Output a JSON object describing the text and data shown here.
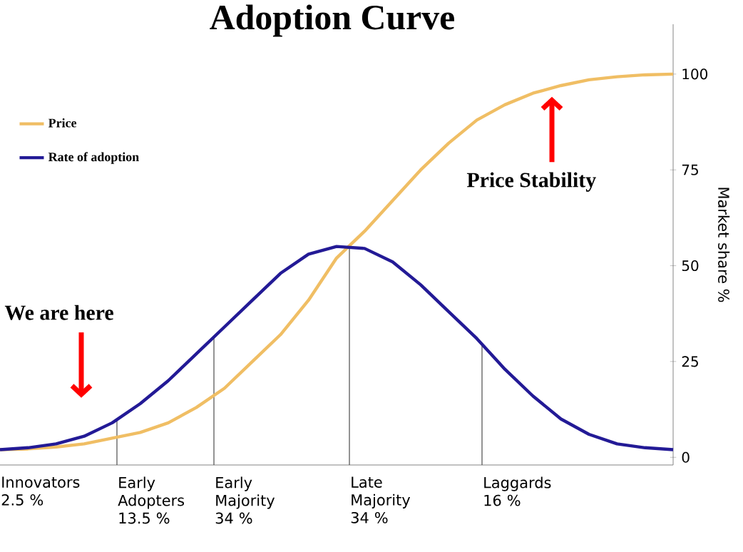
{
  "chart_data": {
    "type": "line",
    "title": "Adoption Curve",
    "ylabel": "Market share %",
    "categories": [
      null,
      null,
      null,
      null,
      null,
      null,
      null,
      null,
      null,
      null,
      null,
      null,
      null,
      null,
      null,
      null,
      null,
      null,
      null,
      null,
      null,
      null,
      null,
      null,
      null
    ],
    "series": [
      {
        "name": "Price",
        "color": "#f0be64",
        "values": [
          2,
          2.2,
          2.7,
          3.5,
          5,
          6.5,
          9,
          13,
          18,
          25,
          32,
          41,
          52,
          59,
          67,
          75,
          82,
          88,
          92,
          95,
          97,
          98.5,
          99.3,
          99.8,
          100
        ]
      },
      {
        "name": "Rate of adoption",
        "color": "#231a96",
        "values": [
          2,
          2.5,
          3.5,
          5.5,
          9,
          14,
          20,
          27,
          34,
          41,
          48,
          53,
          55,
          54.5,
          51,
          45,
          38,
          31,
          23,
          16,
          10,
          6,
          3.5,
          2.5,
          2
        ]
      }
    ],
    "ylim": [
      -2,
      113
    ],
    "yticks": [
      0,
      25,
      50,
      75,
      100
    ],
    "tick_labels": "y",
    "legend": "top left",
    "marker": "none",
    "line_style": "solid",
    "grid": false,
    "annotations": [
      "We are here",
      "Price Stability",
      "Innovators 2.5 %",
      "Early Adopters 13.5 %",
      "Early Majority 34 %",
      "Late Majority 34 %",
      "Laggards 16 %"
    ]
  }
}
